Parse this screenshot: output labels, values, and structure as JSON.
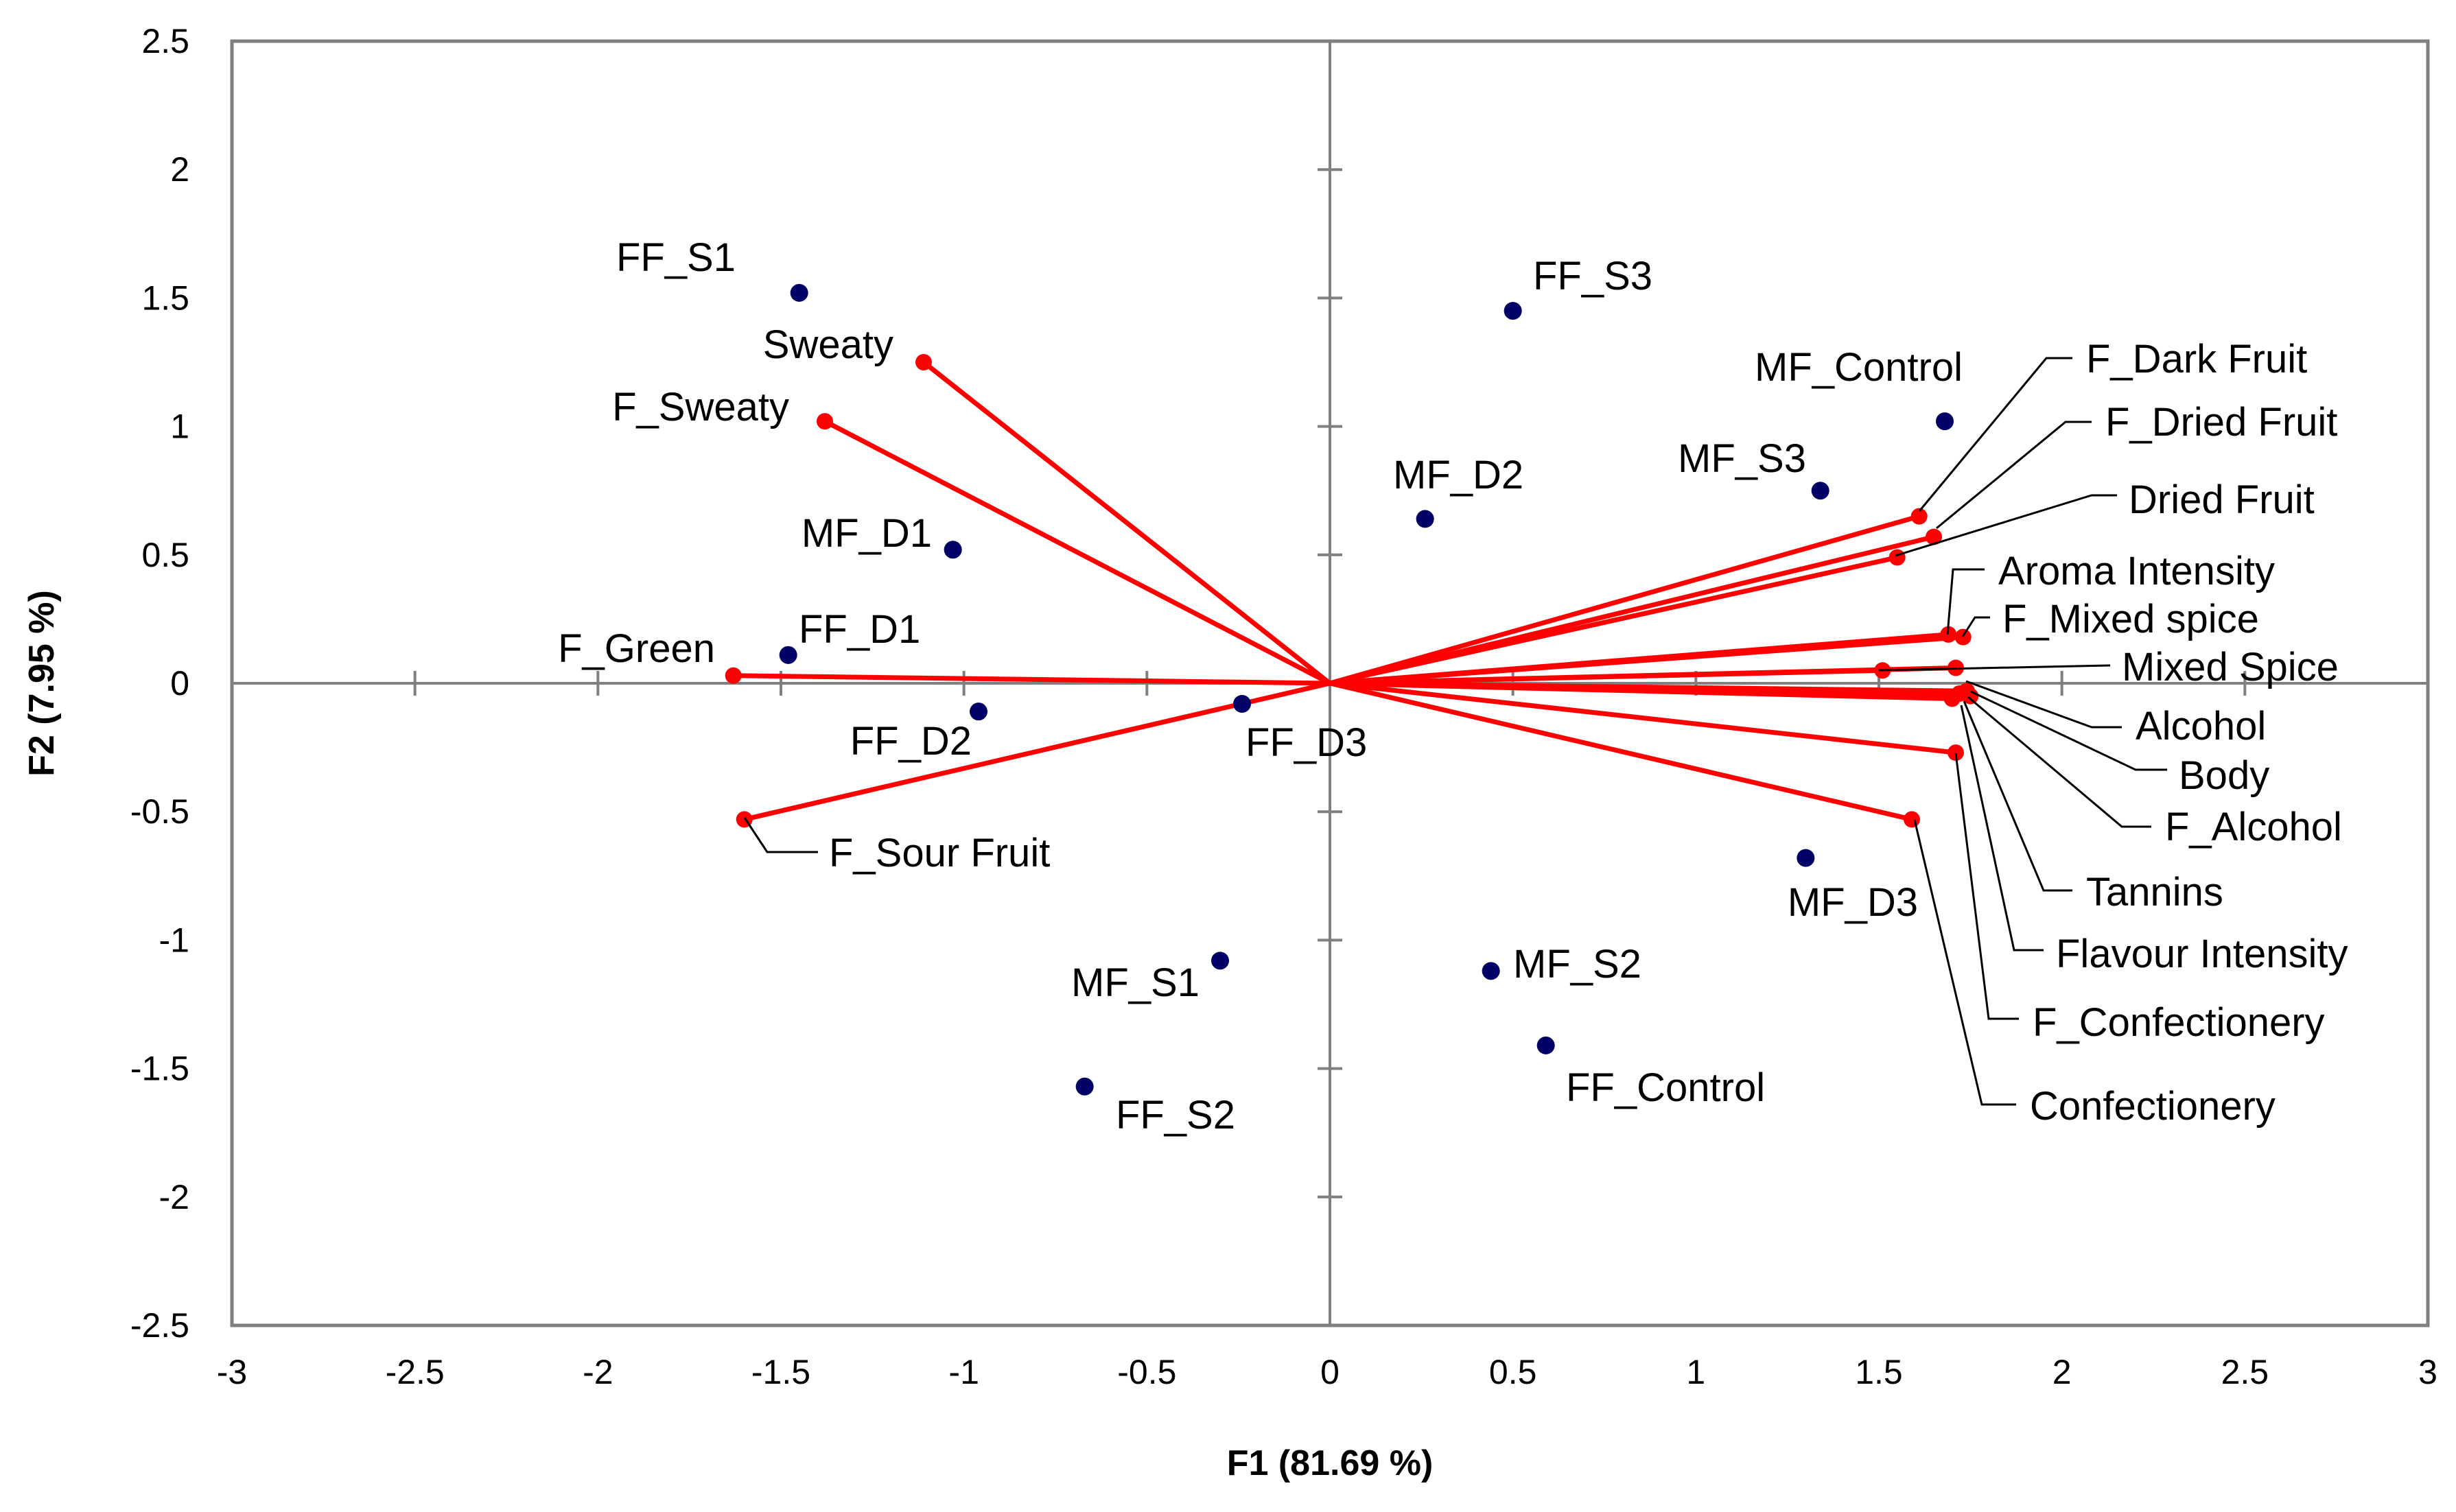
{
  "chart_data": {
    "type": "scatter",
    "subtype": "biplot",
    "title": "",
    "xlabel": "F1 (81.69 %)",
    "ylabel": "F2 (7.95 %)",
    "xlim": [
      -3,
      3
    ],
    "ylim": [
      -2.5,
      2.5
    ],
    "x_ticks": [
      -3,
      -2.5,
      -2,
      -1.5,
      -1,
      -0.5,
      0,
      0.5,
      1,
      1.5,
      2,
      2.5,
      3
    ],
    "y_ticks": [
      -2.5,
      -2,
      -1.5,
      -1,
      -0.5,
      0,
      0.5,
      1,
      1.5,
      2,
      2.5
    ],
    "colors": {
      "observations": "#000066",
      "variables": "#ff0000",
      "axes": "#808080",
      "text": "#000000"
    },
    "observations": [
      {
        "label": "FF_S1",
        "x": -1.45,
        "y": 1.52
      },
      {
        "label": "FF_S3",
        "x": 0.5,
        "y": 1.45
      },
      {
        "label": "MF_Control",
        "x": 1.68,
        "y": 1.02
      },
      {
        "label": "MF_S3",
        "x": 1.34,
        "y": 0.75
      },
      {
        "label": "MF_D2",
        "x": 0.26,
        "y": 0.64
      },
      {
        "label": "MF_D1",
        "x": -1.03,
        "y": 0.52
      },
      {
        "label": "FF_D1",
        "x": -1.48,
        "y": 0.11
      },
      {
        "label": "FF_D2",
        "x": -0.96,
        "y": -0.11
      },
      {
        "label": "FF_D3",
        "x": -0.24,
        "y": -0.08
      },
      {
        "label": "MF_D3",
        "x": 1.3,
        "y": -0.68
      },
      {
        "label": "MF_S1",
        "x": -0.3,
        "y": -1.08
      },
      {
        "label": "MF_S2",
        "x": 0.44,
        "y": -1.12
      },
      {
        "label": "FF_Control",
        "x": 0.59,
        "y": -1.41
      },
      {
        "label": "FF_S2",
        "x": -0.67,
        "y": -1.57
      }
    ],
    "variables": [
      {
        "label": "Sweaty",
        "x": -1.11,
        "y": 1.25
      },
      {
        "label": "F_Sweaty",
        "x": -1.38,
        "y": 1.02
      },
      {
        "label": "F_Green",
        "x": -1.63,
        "y": 0.03
      },
      {
        "label": "F_Sour Fruit",
        "x": -1.6,
        "y": -0.53
      },
      {
        "label": "F_Dark Fruit",
        "x": 1.61,
        "y": 0.65
      },
      {
        "label": "F_Dried Fruit",
        "x": 1.65,
        "y": 0.57
      },
      {
        "label": "Dried Fruit",
        "x": 1.55,
        "y": 0.49
      },
      {
        "label": "Aroma Intensity",
        "x": 1.69,
        "y": 0.19
      },
      {
        "label": "F_Mixed spice",
        "x": 1.73,
        "y": 0.18
      },
      {
        "label": "Mixed Spice",
        "x": 1.51,
        "y": 0.05
      },
      {
        "label": "Alcohol",
        "x": 1.71,
        "y": 0.06
      },
      {
        "label": "Body",
        "x": 1.74,
        "y": -0.03
      },
      {
        "label": "F_Alcohol",
        "x": 1.75,
        "y": -0.05
      },
      {
        "label": "Tannins",
        "x": 1.72,
        "y": -0.04
      },
      {
        "label": "Flavour Intensity",
        "x": 1.7,
        "y": -0.06
      },
      {
        "label": "F_Confectionery",
        "x": 1.71,
        "y": -0.27
      },
      {
        "label": "Confectionery",
        "x": 1.59,
        "y": -0.53
      }
    ]
  }
}
